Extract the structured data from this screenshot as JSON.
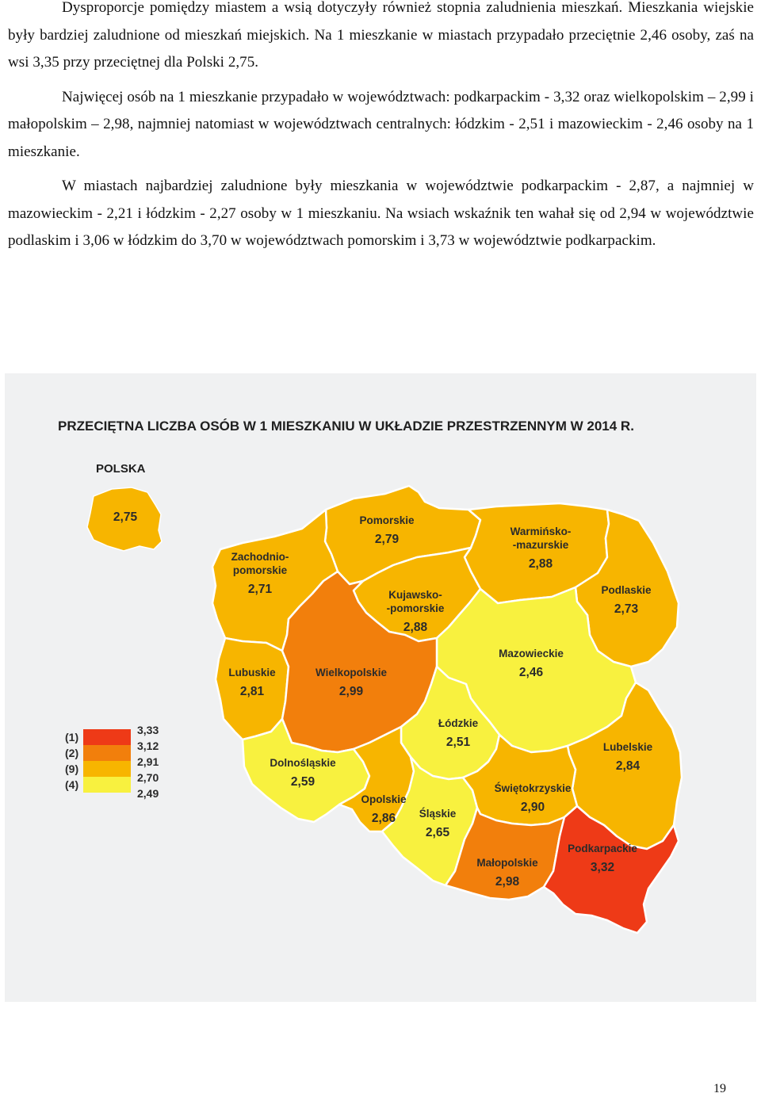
{
  "paragraphs": [
    "Dysproporcje pomiędzy miastem a wsią dotyczyły również stopnia zaludnienia mieszkań. Mieszkania wiejskie były bardziej zaludnione od mieszkań miejskich. Na 1 mieszkanie w miastach przypadało przeciętnie 2,46 osoby, zaś na wsi 3,35 przy przeciętnej dla Polski 2,75.",
    "Najwięcej osób na 1 mieszkanie przypadało w województwach: podkarpackim - 3,32 oraz wielkopolskim – 2,99 i małopolskim – 2,98, najmniej natomiast w województwach centralnych: łódzkim - 2,51 i mazowieckim - 2,46 osoby na 1 mieszkanie.",
    "W miastach najbardziej zaludnione były mieszkania w województwie podkarpackim - 2,87, a najmniej w mazowieckim - 2,21 i łódzkim - 2,27 osoby w 1 mieszkaniu. Na wsiach wskaźnik ten wahał się od 2,94 w województwie podlaskim i 3,06 w łódzkim do 3,70 w województwach pomorskim i 3,73 w województwie podkarpackim."
  ],
  "map": {
    "title": "PRZECIĘTNA LICZBA OSÓB W 1 MIESZKANIU W UKŁADZIE PRZESTRZENNYM W 2014 R.",
    "inset": {
      "label": "POLSKA",
      "value": "2,75",
      "color": "#f7b500"
    },
    "regions": [
      {
        "key": "pomorskie",
        "name": [
          "Pomorskie"
        ],
        "value": "2,79",
        "color": "#f7b500"
      },
      {
        "key": "warminsko",
        "name": [
          "Warmińsko-",
          "-mazurskie"
        ],
        "value": "2,88",
        "color": "#f7b500"
      },
      {
        "key": "zachodnio",
        "name": [
          "Zachodnio-",
          "pomorskie"
        ],
        "value": "2,71",
        "color": "#f7b500"
      },
      {
        "key": "kujawsko",
        "name": [
          "Kujawsko-",
          "-pomorskie"
        ],
        "value": "2,88",
        "color": "#f7b500"
      },
      {
        "key": "podlaskie",
        "name": [
          "Podlaskie"
        ],
        "value": "2,73",
        "color": "#f7b500"
      },
      {
        "key": "mazowieckie",
        "name": [
          "Mazowieckie"
        ],
        "value": "2,46",
        "color": "#f8f13f"
      },
      {
        "key": "lubuskie",
        "name": [
          "Lubuskie"
        ],
        "value": "2,81",
        "color": "#f7b500"
      },
      {
        "key": "wielkopolskie",
        "name": [
          "Wielkopolskie"
        ],
        "value": "2,99",
        "color": "#f27f0c"
      },
      {
        "key": "lodzkie",
        "name": [
          "Łódzkie"
        ],
        "value": "2,51",
        "color": "#f8f13f"
      },
      {
        "key": "lubelskie",
        "name": [
          "Lubelskie"
        ],
        "value": "2,84",
        "color": "#f7b500"
      },
      {
        "key": "dolnoslaskie",
        "name": [
          "Dolnośląskie"
        ],
        "value": "2,59",
        "color": "#f8f13f"
      },
      {
        "key": "opolskie",
        "name": [
          "Opolskie"
        ],
        "value": "2,86",
        "color": "#f7b500"
      },
      {
        "key": "slaskie",
        "name": [
          "Śląskie"
        ],
        "value": "2,65",
        "color": "#f8f13f"
      },
      {
        "key": "swietokrzyskie",
        "name": [
          "Świętokrzyskie"
        ],
        "value": "2,90",
        "color": "#f7b500"
      },
      {
        "key": "malopolskie",
        "name": [
          "Małopolskie"
        ],
        "value": "2,98",
        "color": "#f27f0c"
      },
      {
        "key": "podkarpackie",
        "name": [
          "Podkarpackie"
        ],
        "value": "3,32",
        "color": "#ee3a17"
      }
    ],
    "legend": {
      "thresholds": [
        "3,33",
        "3,12",
        "2,91",
        "2,70",
        "2,49"
      ],
      "classes": [
        {
          "count": "(1)",
          "color": "#ee3a17"
        },
        {
          "count": "(2)",
          "color": "#f27f0c"
        },
        {
          "count": "(9)",
          "color": "#f7b500"
        },
        {
          "count": "(4)",
          "color": "#f8f13f"
        }
      ]
    }
  },
  "page_number": "19"
}
